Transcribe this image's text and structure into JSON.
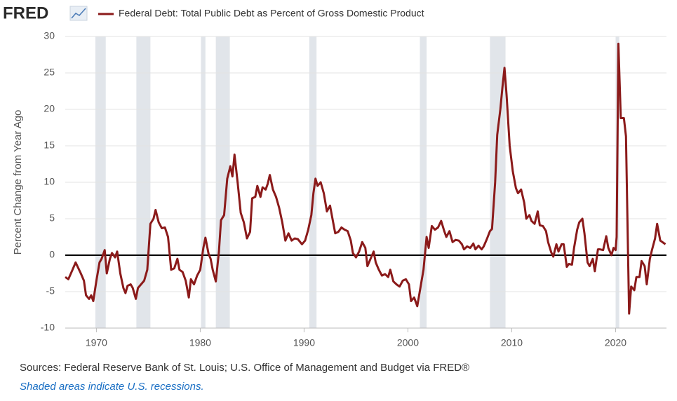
{
  "logo": "FRED",
  "chart_data": {
    "type": "line",
    "y_label": "Percent Change from Year Ago",
    "source": "Sources: Federal Reserve Bank of St. Louis; U.S. Office of Management and Budget via FRED®",
    "note": "Shaded areas indicate U.S. recessions.",
    "xlim": [
      1967,
      2024.9
    ],
    "xticks": [
      1970,
      1980,
      1990,
      2000,
      2010,
      2020
    ],
    "ylim": [
      -10,
      30
    ],
    "yticks": [
      -10,
      -5,
      0,
      5,
      10,
      15,
      20,
      25,
      30
    ],
    "grid": true,
    "zero_line": true,
    "recession_color": "#e1e5ea",
    "recessions": [
      [
        1969.9,
        1970.9
      ],
      [
        1973.85,
        1975.2
      ],
      [
        1980.07,
        1980.5
      ],
      [
        1981.5,
        1982.85
      ],
      [
        1990.5,
        1991.2
      ],
      [
        2001.15,
        2001.8
      ],
      [
        2007.9,
        2009.4
      ],
      [
        2020.0,
        2020.35
      ]
    ],
    "x": [
      1967,
      1967.3,
      1967.7,
      1968,
      1968.5,
      1968.8,
      1969,
      1969.3,
      1969.5,
      1969.7,
      1970,
      1970.3,
      1970.5,
      1970.8,
      1971,
      1971.3,
      1971.5,
      1971.8,
      1972,
      1972.3,
      1972.6,
      1972.8,
      1973,
      1973.3,
      1973.5,
      1973.8,
      1974,
      1974.3,
      1974.6,
      1974.9,
      1975.2,
      1975.5,
      1975.7,
      1976,
      1976.3,
      1976.6,
      1976.9,
      1977.2,
      1977.5,
      1977.8,
      1978,
      1978.3,
      1978.6,
      1978.9,
      1979.1,
      1979.4,
      1979.7,
      1980,
      1980.3,
      1980.5,
      1980.8,
      1981,
      1981.2,
      1981.5,
      1981.8,
      1982,
      1982.3,
      1982.6,
      1982.9,
      1983.1,
      1983.3,
      1983.6,
      1983.9,
      1984.2,
      1984.5,
      1984.8,
      1985,
      1985.3,
      1985.5,
      1985.8,
      1986,
      1986.3,
      1986.5,
      1986.7,
      1987,
      1987.3,
      1987.6,
      1987.9,
      1988.2,
      1988.5,
      1988.8,
      1989.1,
      1989.4,
      1989.8,
      1990.1,
      1990.4,
      1990.7,
      1990.9,
      1991.1,
      1991.3,
      1991.6,
      1991.9,
      1992.2,
      1992.5,
      1992.8,
      1993,
      1993.3,
      1993.6,
      1993.9,
      1994.2,
      1994.5,
      1994.7,
      1995,
      1995.3,
      1995.6,
      1995.9,
      1996.1,
      1996.4,
      1996.7,
      1996.9,
      1997.2,
      1997.5,
      1997.8,
      1998.1,
      1998.3,
      1998.6,
      1998.9,
      1999.2,
      1999.5,
      1999.8,
      2000.1,
      2000.3,
      2000.6,
      2000.9,
      2001.2,
      2001.5,
      2001.8,
      2002,
      2002.3,
      2002.6,
      2002.9,
      2003.2,
      2003.5,
      2003.7,
      2004,
      2004.3,
      2004.6,
      2004.9,
      2005.2,
      2005.4,
      2005.7,
      2006,
      2006.3,
      2006.5,
      2006.8,
      2007.1,
      2007.3,
      2007.6,
      2007.9,
      2008.1,
      2008.4,
      2008.6,
      2008.9,
      2009.1,
      2009.3,
      2009.5,
      2009.8,
      2010.1,
      2010.4,
      2010.6,
      2010.9,
      2011.2,
      2011.4,
      2011.7,
      2011.9,
      2012.2,
      2012.5,
      2012.7,
      2013,
      2013.3,
      2013.5,
      2013.8,
      2014,
      2014.3,
      2014.5,
      2014.8,
      2015,
      2015.3,
      2015.5,
      2015.8,
      2016,
      2016.3,
      2016.5,
      2016.8,
      2017,
      2017.3,
      2017.5,
      2017.8,
      2018,
      2018.3,
      2018.5,
      2018.8,
      2019.1,
      2019.3,
      2019.6,
      2019.8,
      2020,
      2020.1,
      2020.27,
      2020.5,
      2020.8,
      2021,
      2021.3,
      2021.5,
      2021.8,
      2022,
      2022.3,
      2022.5,
      2022.8,
      2023,
      2023.3,
      2023.5,
      2023.8,
      2024,
      2024.3,
      2024.5,
      2024.8
    ],
    "series": [
      {
        "name": "Federal Debt: Total Public Debt as Percent of Gross Domestic Product",
        "color": "#8b1a1a",
        "values": [
          -3,
          -3.3,
          -2,
          -1,
          -2.5,
          -3.5,
          -5.5,
          -6,
          -5.5,
          -6.3,
          -3.5,
          -1,
          -0.5,
          0.7,
          -2.5,
          -0.5,
          0.3,
          -0.3,
          0.5,
          -2.5,
          -4.5,
          -5.2,
          -4.2,
          -4,
          -4.5,
          -6,
          -4.5,
          -4,
          -3.5,
          -2,
          4.3,
          5,
          6.2,
          4.5,
          3.7,
          3.8,
          2.5,
          -2,
          -1.8,
          -0.5,
          -2,
          -2.3,
          -3.5,
          -5.8,
          -3.3,
          -4,
          -2.8,
          -2,
          1,
          2.4,
          0.2,
          -0.5,
          -2,
          -3.6,
          0.5,
          4.8,
          5.5,
          10.5,
          12.2,
          10.8,
          13.8,
          10,
          5.8,
          4.5,
          2.3,
          3.2,
          7.8,
          8,
          9.5,
          8,
          9.3,
          9,
          9.8,
          11,
          9,
          8,
          6.5,
          4.5,
          2,
          3,
          2,
          2.3,
          2.2,
          1.5,
          2,
          3.5,
          5.5,
          8.5,
          10.5,
          9.5,
          10,
          8.5,
          6,
          6.8,
          4.5,
          3,
          3.2,
          3.8,
          3.5,
          3.3,
          2,
          0.3,
          -0.3,
          0.5,
          1.8,
          1,
          -1.5,
          -0.5,
          0.5,
          -1,
          -2,
          -2.8,
          -2.6,
          -3,
          -2,
          -3.6,
          -4,
          -4.3,
          -3.5,
          -3.3,
          -4,
          -6.3,
          -5.8,
          -7,
          -4.5,
          -2,
          2.5,
          1,
          4,
          3.5,
          3.8,
          4.7,
          3.3,
          2.5,
          3.3,
          1.8,
          2.1,
          2,
          1.5,
          0.8,
          1.2,
          1,
          1.6,
          0.8,
          1.3,
          0.8,
          1.2,
          2.2,
          3.3,
          3.6,
          10,
          16.5,
          20,
          23,
          25.7,
          22,
          15,
          11.5,
          9.2,
          8.5,
          9,
          7.2,
          5,
          5.5,
          4.7,
          4.3,
          6,
          4.1,
          4,
          3.3,
          1.8,
          0.4,
          -0.2,
          1.5,
          0.5,
          1.5,
          1.5,
          -1.6,
          -1.2,
          -1.3,
          1,
          3.5,
          4.5,
          5,
          3,
          -1,
          -1.5,
          -0.5,
          -2.2,
          0.8,
          0.8,
          0.7,
          2.6,
          1,
          0,
          1,
          0.7,
          2.5,
          29,
          18.8,
          18.8,
          16.3,
          -8,
          -4.3,
          -4.8,
          -3,
          -3,
          -0.8,
          -1.5,
          -4,
          -0.5,
          0.7,
          2.3,
          4.3,
          2,
          1.8,
          1.5
        ]
      }
    ]
  }
}
